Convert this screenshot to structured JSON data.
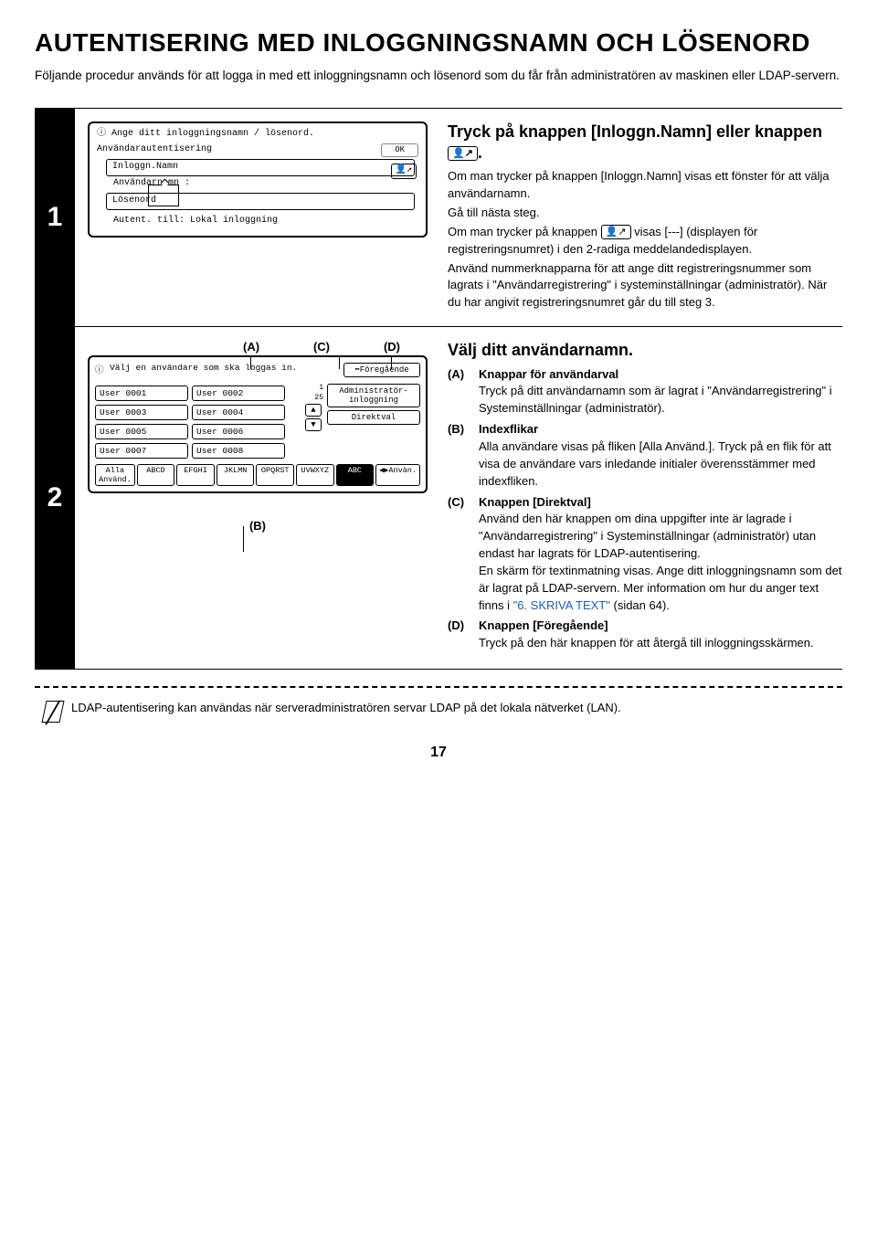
{
  "title": "AUTENTISERING MED INLOGGNINGSNAMN OCH LÖSENORD",
  "intro": "Följande procedur används för att logga in med ett inloggningsnamn och lösenord som du får från administratören av maskinen eller LDAP-servern.",
  "step1": {
    "num": "1",
    "panel": {
      "hdr_icon": "ⓘ",
      "hdr": "Ange ditt inloggningsnamn / lösenord.",
      "auth_label": "Användarautentisering",
      "ok": "OK",
      "login_field": "Inloggn.Namn",
      "user_lbl": "Användarnamn :",
      "pwd_field": "Lösenord",
      "auth_to": "Autent. till:",
      "auth_val": "Lokal inloggning",
      "person_icon": "👤↗"
    },
    "heading_a": "Tryck på knappen [Inloggn.Namn] eller knappen ",
    "heading_b": ".",
    "icon_txt": "👤↗",
    "p1": "Om man trycker på knappen [Inloggn.Namn] visas ett fönster för att välja användarnamn.",
    "p2": "Gå till nästa steg.",
    "p3a": "Om man trycker på knappen ",
    "p3b": " visas [---] (displayen för registreringsnumret) i den 2-radiga meddelandedisplayen.",
    "p4": "Använd nummerknapparna för att ange ditt registreringsnummer som lagrats i \"Användarregistrering\" i systeminställningar (administratör). När du har angivit registreringsnumret går du till steg 3."
  },
  "step2": {
    "num": "2",
    "call_a": "(A)",
    "call_c": "(C)",
    "call_d": "(D)",
    "call_b": "(B)",
    "panel": {
      "hdr_icon": "ⓘ",
      "hdr": "Välj en användare som ska loggas in.",
      "users": [
        "User 0001",
        "User 0002",
        "User 0003",
        "User 0004",
        "User 0005",
        "User 0006",
        "User 0007",
        "User 0008"
      ],
      "prev": "⬅Föregående",
      "admin": "Administratör-inloggning",
      "direct": "Direktval",
      "pg1": "1",
      "pg2": "25",
      "tabs": [
        "Alla Använd.",
        "ABCD",
        "EFGHI",
        "JKLMN",
        "OPQRST",
        "UVWXYZ",
        "ABC",
        "◀▶Använ."
      ]
    },
    "heading": "Välj ditt användarnamn.",
    "items": [
      {
        "k": "(A)",
        "t": "Knappar för användarval",
        "b": "Tryck på ditt användarnamn som är lagrat i \"Användarregistrering\" i Systeminställningar (administratör)."
      },
      {
        "k": "(B)",
        "t": "Indexflikar",
        "b": "Alla användare visas på fliken [Alla Använd.]. Tryck på en flik för att visa de användare vars inledande initialer överensstämmer med indexfliken."
      },
      {
        "k": "(C)",
        "t": "Knappen [Direktval]",
        "b": "Använd den här knappen om dina uppgifter inte är lagrade i \"Användarregistrering\" i Systeminställningar (administratör) utan endast har lagrats för LDAP-autentisering.\nEn skärm för textinmatning visas. Ange ditt inloggningsnamn som det är lagrat på LDAP-servern. Mer information om hur du anger text finns i ",
        "link": "\"6. SKRIVA TEXT\"",
        "after": " (sidan 64)."
      },
      {
        "k": "(D)",
        "t": "Knappen [Föregående]",
        "b": "Tryck på den här knappen för att återgå till inloggningsskärmen."
      }
    ]
  },
  "note": "LDAP-autentisering kan användas när serveradministratören servar LDAP på det lokala nätverket (LAN).",
  "pagenum": "17"
}
